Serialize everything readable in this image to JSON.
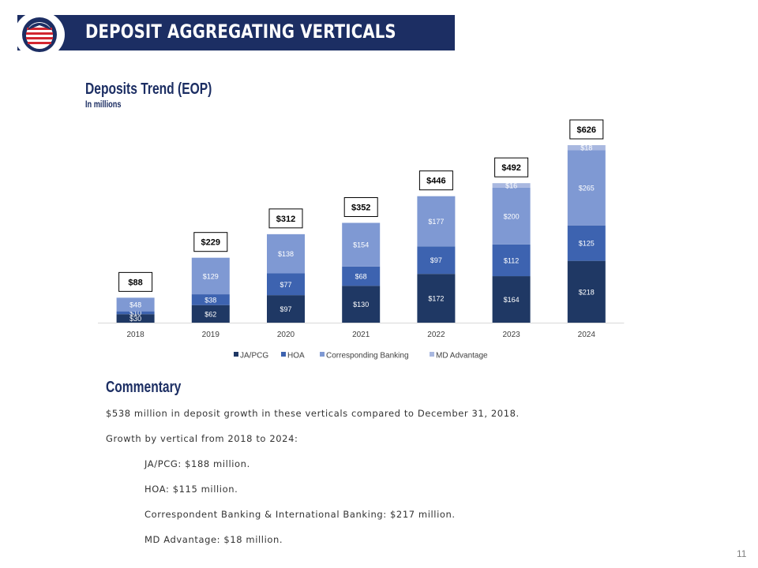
{
  "header": {
    "title": "DEPOSIT AGGREGATING VERTICALS"
  },
  "chart_heading": {
    "title": "Deposits Trend (EOP)",
    "subtitle": "In millions"
  },
  "chart_data": {
    "type": "bar",
    "stacked": true,
    "categories": [
      "2018",
      "2019",
      "2020",
      "2021",
      "2022",
      "2023",
      "2024"
    ],
    "series": [
      {
        "name": "JA/PCG",
        "color": "#1f3864",
        "values": [
          30,
          62,
          97,
          130,
          172,
          164,
          218
        ],
        "labels": [
          "$30",
          "$62",
          "$97",
          "$130",
          "$172",
          "$164",
          "$218"
        ]
      },
      {
        "name": "HOA",
        "color": "#3d63b0",
        "values": [
          10,
          38,
          77,
          68,
          97,
          112,
          125
        ],
        "labels": [
          "$10",
          "$38",
          "$77",
          "$68",
          "$97",
          "$112",
          "$125"
        ]
      },
      {
        "name": "Corresponding Banking",
        "color": "#7f99d3",
        "values": [
          48,
          129,
          138,
          154,
          177,
          200,
          265
        ],
        "labels": [
          "$48",
          "$129",
          "$138",
          "$154",
          "$177",
          "$200",
          "$265"
        ]
      },
      {
        "name": "MD Advantage",
        "color": "#a9b8e0",
        "values": [
          0,
          0,
          0,
          0,
          0,
          16,
          18
        ],
        "labels": [
          "",
          "",
          "",
          "",
          "",
          "$16",
          "$18"
        ]
      }
    ],
    "totals": [
      88,
      229,
      312,
      352,
      446,
      492,
      626
    ],
    "total_labels": [
      "$88",
      "$229",
      "$312",
      "$352",
      "$446",
      "$492",
      "$626"
    ],
    "ylim": [
      0,
      640
    ],
    "legend_position": "bottom"
  },
  "commentary": {
    "title": "Commentary",
    "line1": "$538 million in deposit growth in these verticals compared to December 31, 2018.",
    "line2": "Growth by vertical from 2018 to 2024:",
    "items": [
      "JA/PCG: $188 million.",
      "HOA: $115 million.",
      "Correspondent Banking & International Banking: $217 million.",
      "MD Advantage: $18 million."
    ]
  },
  "page_number": "11"
}
